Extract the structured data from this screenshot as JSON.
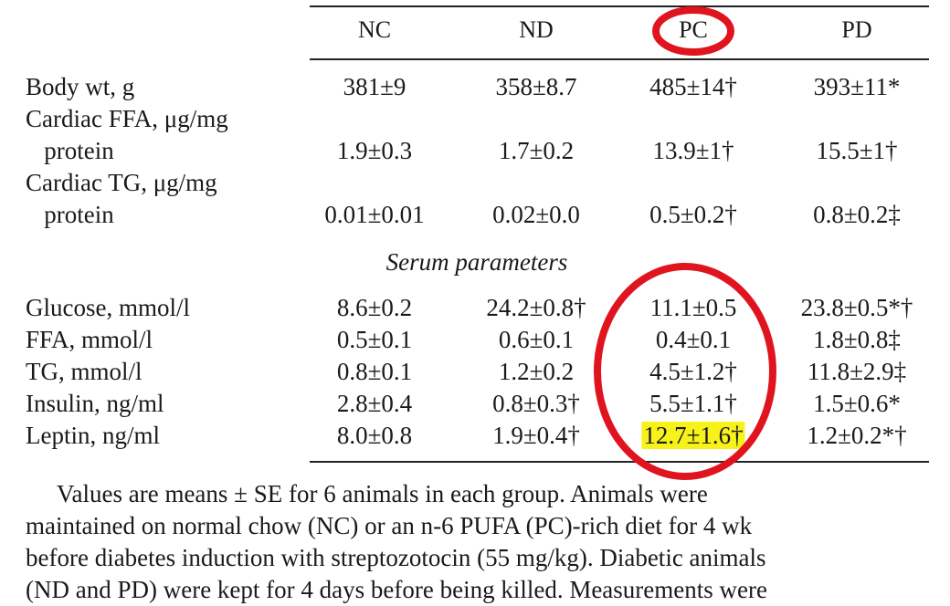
{
  "columns": [
    "NC",
    "ND",
    "PC",
    "PD"
  ],
  "rows_top": [
    {
      "label_lines": [
        "Body wt, g"
      ],
      "values": [
        "381±9",
        "358±8.7",
        "485±14†",
        "393±11*"
      ]
    },
    {
      "label_lines": [
        "Cardiac FFA, μg/mg",
        "   protein"
      ],
      "values": [
        "1.9±0.3",
        "1.7±0.2",
        "13.9±1†",
        "15.5±1†"
      ]
    },
    {
      "label_lines": [
        "Cardiac TG, μg/mg",
        "   protein"
      ],
      "values": [
        "0.01±0.01",
        "0.02±0.0",
        "0.5±0.2†",
        "0.8±0.2‡"
      ]
    }
  ],
  "section_label": "Serum parameters",
  "rows_serum": [
    {
      "label": "Glucose, mmol/l",
      "values": [
        "8.6±0.2",
        "24.2±0.8†",
        "11.1±0.5",
        "23.8±0.5*†"
      ]
    },
    {
      "label": "FFA, mmol/l",
      "values": [
        "0.5±0.1",
        "0.6±0.1",
        "0.4±0.1",
        "1.8±0.8‡"
      ]
    },
    {
      "label": "TG, mmol/l",
      "values": [
        "0.8±0.1",
        "1.2±0.2",
        "4.5±1.2†",
        "11.8±2.9‡"
      ]
    },
    {
      "label": "Insulin, ng/ml",
      "values": [
        "2.8±0.4",
        "0.8±0.3†",
        "5.5±1.1†",
        "1.5±0.6*"
      ]
    },
    {
      "label": "Leptin, ng/ml",
      "values": [
        "8.0±0.8",
        "1.9±0.4†",
        "12.7±1.6†",
        "1.2±0.2*†"
      ]
    }
  ],
  "highlighted_cell": {
    "row": "Leptin, ng/ml",
    "column": "PC"
  },
  "annotation_color": "#e0141e",
  "highlight_color": "#f7f21a",
  "footnote_lines": [
    "Values are means ± SE for 6 animals in each group. Animals were",
    "maintained on normal chow (NC) or an n-6 PUFA (PC)-rich diet for 4 wk",
    "before diabetes induction with streptozotocin (55 mg/kg). Diabetic animals",
    "(ND and PD) were kept for 4 days before being killed. Measurements were"
  ]
}
